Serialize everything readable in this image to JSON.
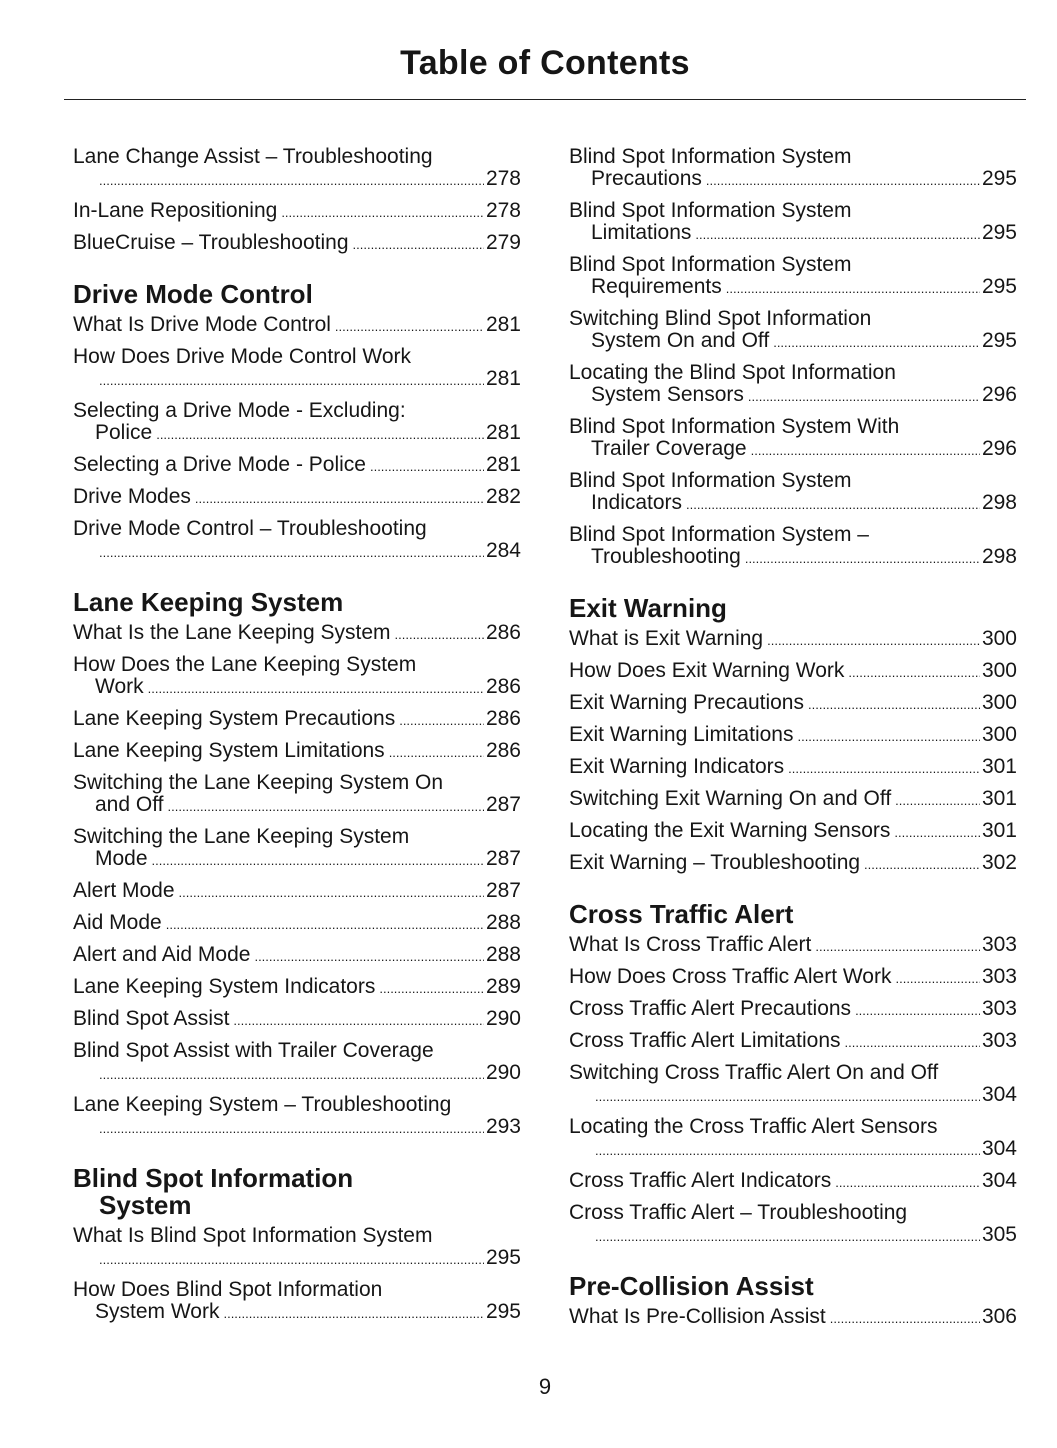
{
  "title": "Table of Contents",
  "page_number": "9",
  "columns": [
    [
      {
        "entry": [
          "Lane Change Assist – Troubleshooting",
          ""
        ],
        "page": "278"
      },
      {
        "entry": [
          "In-Lane Repositioning"
        ],
        "page": "278"
      },
      {
        "entry": [
          "BlueCruise –  Troubleshooting"
        ],
        "page": "279"
      },
      {
        "heading": [
          "Drive Mode Control"
        ]
      },
      {
        "entry": [
          "What Is Drive Mode Control"
        ],
        "page": "281"
      },
      {
        "entry": [
          "How Does Drive Mode Control Work",
          ""
        ],
        "page": "281"
      },
      {
        "entry": [
          "Selecting a Drive Mode - Excluding:",
          "Police"
        ],
        "page": "281"
      },
      {
        "entry": [
          "Selecting a Drive Mode - Police"
        ],
        "page": "281"
      },
      {
        "entry": [
          "Drive Modes"
        ],
        "page": "282"
      },
      {
        "entry": [
          "Drive Mode Control – Troubleshooting",
          ""
        ],
        "page": "284"
      },
      {
        "heading": [
          "Lane Keeping System"
        ]
      },
      {
        "entry": [
          "What Is the Lane Keeping System"
        ],
        "page": "286"
      },
      {
        "entry": [
          "How Does the Lane Keeping System",
          "Work"
        ],
        "page": "286"
      },
      {
        "entry": [
          "Lane Keeping System Precautions"
        ],
        "page": "286"
      },
      {
        "entry": [
          "Lane Keeping System Limitations"
        ],
        "page": "286"
      },
      {
        "entry": [
          "Switching the Lane Keeping System On",
          "and Off"
        ],
        "page": "287"
      },
      {
        "entry": [
          "Switching the Lane Keeping System",
          "Mode"
        ],
        "page": "287"
      },
      {
        "entry": [
          "Alert Mode"
        ],
        "page": "287"
      },
      {
        "entry": [
          "Aid Mode"
        ],
        "page": "288"
      },
      {
        "entry": [
          "Alert and Aid Mode"
        ],
        "page": "288"
      },
      {
        "entry": [
          "Lane Keeping System Indicators"
        ],
        "page": "289"
      },
      {
        "entry": [
          "Blind Spot Assist"
        ],
        "page": "290"
      },
      {
        "entry": [
          "Blind Spot Assist with Trailer Coverage",
          ""
        ],
        "page": "290"
      },
      {
        "entry": [
          "Lane Keeping System – Troubleshooting",
          ""
        ],
        "page": "293"
      },
      {
        "heading": [
          "Blind Spot Information",
          "System"
        ]
      },
      {
        "entry": [
          "What Is Blind Spot Information System",
          ""
        ],
        "page": "295"
      },
      {
        "entry": [
          "How Does Blind Spot Information",
          "System Work"
        ],
        "page": "295"
      }
    ],
    [
      {
        "entry": [
          "Blind Spot Information System",
          "Precautions"
        ],
        "page": "295"
      },
      {
        "entry": [
          "Blind Spot Information System",
          "Limitations"
        ],
        "page": "295"
      },
      {
        "entry": [
          "Blind Spot Information System",
          "Requirements"
        ],
        "page": "295"
      },
      {
        "entry": [
          "Switching Blind Spot Information",
          "System On and Off"
        ],
        "page": "295"
      },
      {
        "entry": [
          "Locating the Blind Spot Information",
          "System Sensors"
        ],
        "page": "296"
      },
      {
        "entry": [
          "Blind Spot Information System With",
          "Trailer Coverage"
        ],
        "page": "296"
      },
      {
        "entry": [
          "Blind Spot Information System",
          "Indicators"
        ],
        "page": "298"
      },
      {
        "entry": [
          "Blind Spot Information System –",
          "Troubleshooting"
        ],
        "page": "298"
      },
      {
        "heading": [
          "Exit Warning"
        ]
      },
      {
        "entry": [
          "What is Exit Warning"
        ],
        "page": "300"
      },
      {
        "entry": [
          "How Does Exit Warning Work"
        ],
        "page": "300"
      },
      {
        "entry": [
          "Exit Warning Precautions"
        ],
        "page": "300"
      },
      {
        "entry": [
          "Exit Warning Limitations"
        ],
        "page": "300"
      },
      {
        "entry": [
          "Exit Warning Indicators"
        ],
        "page": "301"
      },
      {
        "entry": [
          "Switching Exit Warning On and Off"
        ],
        "page": "301"
      },
      {
        "entry": [
          "Locating the Exit Warning Sensors"
        ],
        "page": "301"
      },
      {
        "entry": [
          "Exit Warning –  Troubleshooting"
        ],
        "page": "302"
      },
      {
        "heading": [
          "Cross Traffic Alert"
        ]
      },
      {
        "entry": [
          "What Is Cross Traffic Alert"
        ],
        "page": "303"
      },
      {
        "entry": [
          "How Does Cross Traffic Alert Work"
        ],
        "page": "303"
      },
      {
        "entry": [
          "Cross Traffic Alert Precautions"
        ],
        "page": "303"
      },
      {
        "entry": [
          "Cross Traffic Alert Limitations"
        ],
        "page": "303"
      },
      {
        "entry": [
          "Switching Cross Traffic Alert On and Off",
          ""
        ],
        "page": "304"
      },
      {
        "entry": [
          "Locating the Cross Traffic Alert Sensors",
          ""
        ],
        "page": "304"
      },
      {
        "entry": [
          "Cross Traffic Alert Indicators"
        ],
        "page": "304"
      },
      {
        "entry": [
          "Cross Traffic Alert – Troubleshooting",
          ""
        ],
        "page": "305"
      },
      {
        "heading": [
          "Pre-Collision Assist"
        ]
      },
      {
        "entry": [
          "What Is Pre-Collision Assist"
        ],
        "page": "306"
      }
    ]
  ]
}
